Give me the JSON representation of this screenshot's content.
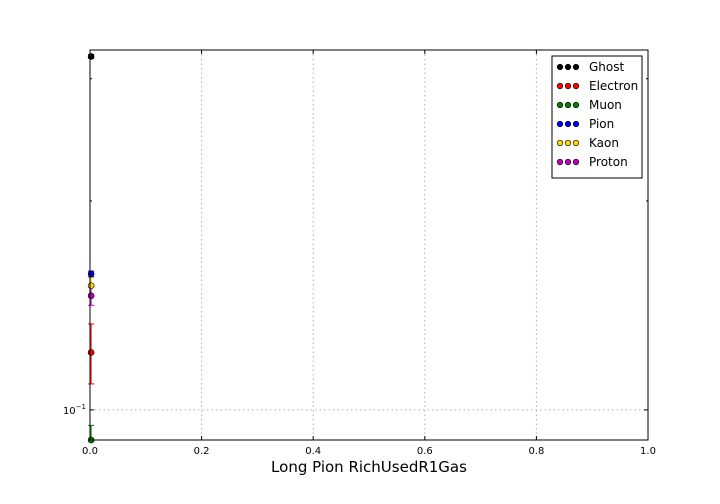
{
  "chart_data": {
    "type": "scatter",
    "title": "",
    "xlabel": "Long Pion RichUsedR1Gas",
    "ylabel": "",
    "xlim": [
      0.0,
      1.0
    ],
    "ylim": [
      0.0905,
      0.33
    ],
    "yscale": "log",
    "grid": true,
    "legend_position": "top-right",
    "x_ticks": [
      {
        "value": 0.0,
        "label": "0.0"
      },
      {
        "value": 0.2,
        "label": "0.2"
      },
      {
        "value": 0.4,
        "label": "0.4"
      },
      {
        "value": 0.6,
        "label": "0.6"
      },
      {
        "value": 0.8,
        "label": "0.8"
      },
      {
        "value": 1.0,
        "label": "1.0"
      }
    ],
    "y_ticks": [
      {
        "value": 0.1,
        "base": "10",
        "exp": "−1"
      }
    ],
    "series": [
      {
        "name": "Ghost",
        "color": "#000000",
        "points": [
          {
            "x": 0.002,
            "y": 0.323,
            "err": 0.002
          }
        ]
      },
      {
        "name": "Electron",
        "color": "#ff0000",
        "points": [
          {
            "x": 0.002,
            "y": 0.121,
            "err": 0.012
          }
        ]
      },
      {
        "name": "Muon",
        "color": "#008000",
        "points": [
          {
            "x": 0.002,
            "y": 0.0905,
            "err": 0.0045
          }
        ]
      },
      {
        "name": "Pion",
        "color": "#0000ff",
        "points": [
          {
            "x": 0.002,
            "y": 0.157,
            "err": 0.0015
          }
        ]
      },
      {
        "name": "Kaon",
        "color": "#ffd700",
        "points": [
          {
            "x": 0.002,
            "y": 0.151,
            "err": 0.004
          }
        ]
      },
      {
        "name": "Proton",
        "color": "#bf00bf",
        "points": [
          {
            "x": 0.002,
            "y": 0.146,
            "err": 0.0045
          }
        ]
      }
    ]
  }
}
